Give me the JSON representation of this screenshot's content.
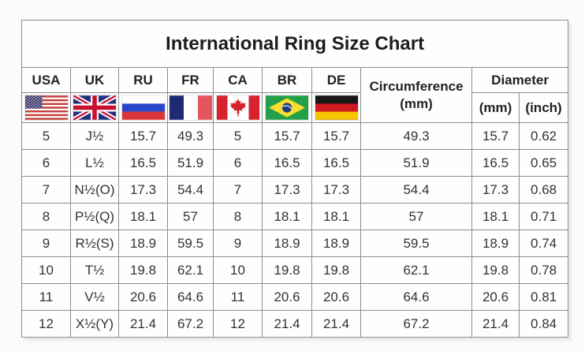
{
  "title": "International Ring Size Chart",
  "columns": {
    "countries": [
      {
        "label": "USA",
        "flag_icon": "usa-flag-icon"
      },
      {
        "label": "UK",
        "flag_icon": "uk-flag-icon"
      },
      {
        "label": "RU",
        "flag_icon": "russia-flag-icon"
      },
      {
        "label": "FR",
        "flag_icon": "france-flag-icon"
      },
      {
        "label": "CA",
        "flag_icon": "canada-flag-icon"
      },
      {
        "label": "BR",
        "flag_icon": "brazil-flag-icon"
      },
      {
        "label": "DE",
        "flag_icon": "germany-flag-icon"
      }
    ],
    "circumference": {
      "line1": "Circumference",
      "line2": "(mm)"
    },
    "diameter": {
      "label": "Diameter",
      "sub_mm": "(mm)",
      "sub_inch": "(inch)"
    }
  },
  "column_keys": [
    "usa",
    "uk",
    "ru",
    "fr",
    "ca",
    "br",
    "de",
    "circumference-mm",
    "diameter-mm",
    "diameter-inch"
  ],
  "rows": [
    [
      "5",
      "J½",
      "15.7",
      "49.3",
      "5",
      "15.7",
      "15.7",
      "49.3",
      "15.7",
      "0.62"
    ],
    [
      "6",
      "L½",
      "16.5",
      "51.9",
      "6",
      "16.5",
      "16.5",
      "51.9",
      "16.5",
      "0.65"
    ],
    [
      "7",
      "N½(O)",
      "17.3",
      "54.4",
      "7",
      "17.3",
      "17.3",
      "54.4",
      "17.3",
      "0.68"
    ],
    [
      "8",
      "P½(Q)",
      "18.1",
      "57",
      "8",
      "18.1",
      "18.1",
      "57",
      "18.1",
      "0.71"
    ],
    [
      "9",
      "R½(S)",
      "18.9",
      "59.5",
      "9",
      "18.9",
      "18.9",
      "59.5",
      "18.9",
      "0.74"
    ],
    [
      "10",
      "T½",
      "19.8",
      "62.1",
      "10",
      "19.8",
      "19.8",
      "62.1",
      "19.8",
      "0.78"
    ],
    [
      "11",
      "V½",
      "20.6",
      "64.6",
      "11",
      "20.6",
      "20.6",
      "64.6",
      "20.6",
      "0.81"
    ],
    [
      "12",
      "X½(Y)",
      "21.4",
      "67.2",
      "12",
      "21.4",
      "21.4",
      "67.2",
      "21.4",
      "0.84"
    ]
  ],
  "colors": {
    "grid_border": "#8d8d8d",
    "outer_border": "#5e5e5e",
    "text": "#333333",
    "header_text": "#222222",
    "background": "#fbfbfb"
  }
}
